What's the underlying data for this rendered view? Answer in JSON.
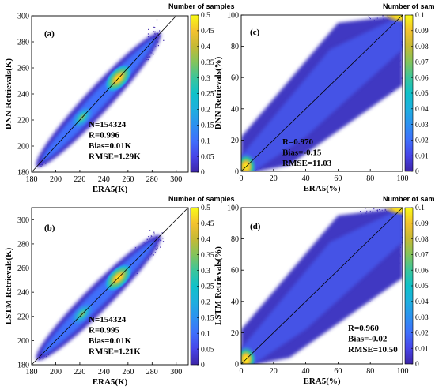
{
  "figure": {
    "panels": [
      {
        "label": "(a)",
        "ylabel": "DNN Retrievals(K)",
        "xlabel": "ERA5(K)",
        "xticks": [
          "180",
          "200",
          "220",
          "240",
          "260",
          "280",
          "300"
        ],
        "yticks": [
          "180",
          "200",
          "220",
          "240",
          "260",
          "280",
          "300"
        ],
        "colorbar_title": "Number of samples",
        "colorbar_ticks": [
          "0",
          "0.05",
          "0.1",
          "0.15",
          "0.2",
          "0.25",
          "0.3",
          "0.35",
          "0.4",
          "0.45",
          "0.5"
        ],
        "stats": [
          "N=154324",
          "R=0.996",
          "Bias=0.01K",
          "RMSE=1.29K"
        ]
      },
      {
        "label": "(c)",
        "ylabel": "DNN Retrievals(%)",
        "xlabel": "ERA5(%)",
        "xticks": [
          "0",
          "20",
          "40",
          "60",
          "80",
          "100"
        ],
        "yticks": [
          "0",
          "20",
          "40",
          "60",
          "80",
          "100"
        ],
        "colorbar_title": "Number of samples",
        "colorbar_ticks": [
          "0",
          "0.01",
          "0.02",
          "0.03",
          "0.04",
          "0.05",
          "0.06",
          "0.07",
          "0.08",
          "0.09",
          "0.1"
        ],
        "stats": [
          "R=0.970",
          "Bias=-0.15",
          "RMSE=11.03"
        ]
      },
      {
        "label": "(b)",
        "ylabel": "LSTM Retrievals(K)",
        "xlabel": "ERA5(K)",
        "xticks": [
          "180",
          "200",
          "220",
          "240",
          "260",
          "280",
          "300"
        ],
        "yticks": [
          "180",
          "200",
          "220",
          "240",
          "260",
          "280",
          "300"
        ],
        "colorbar_title": "Number of samples",
        "colorbar_ticks": [
          "0",
          "0.05",
          "0.1",
          "0.15",
          "0.2",
          "0.25",
          "0.3",
          "0.35",
          "0.4",
          "0.45",
          "0.5"
        ],
        "stats": [
          "N=154324",
          "R=0.995",
          "Bias=0.01K",
          "RMSE=1.21K"
        ]
      },
      {
        "label": "(d)",
        "ylabel": "LSTM Retrievals(%)",
        "xlabel": "ERA5(%)",
        "xticks": [
          "0",
          "20",
          "40",
          "60",
          "80",
          "100"
        ],
        "yticks": [
          "0",
          "20",
          "40",
          "60",
          "80",
          "100"
        ],
        "colorbar_title": "Number of samples",
        "colorbar_ticks": [
          "0",
          "0.01",
          "0.02",
          "0.03",
          "0.04",
          "0.05",
          "0.06",
          "0.07",
          "0.08",
          "0.09",
          "0.1"
        ],
        "stats": [
          "R=0.960",
          "Bias=-0.02",
          "RMSE=10.50"
        ]
      }
    ]
  },
  "chart_data": [
    {
      "type": "scatter",
      "subtype": "density scatter",
      "panel": "(a)",
      "xlabel": "ERA5(K)",
      "ylabel": "DNN Retrievals(K)",
      "xlim": [
        180,
        310
      ],
      "ylim": [
        180,
        300
      ],
      "one_to_one_line": true,
      "colormap": "parula",
      "colorbar_label": "Number of samples",
      "colorbar_range": [
        0,
        0.5
      ],
      "density_peaks": [
        {
          "x": 252,
          "y": 252,
          "value": 0.5
        },
        {
          "x": 222,
          "y": 222,
          "value": 0.35
        }
      ],
      "stats": {
        "N": 154324,
        "R": 0.996,
        "Bias": "0.01K",
        "RMSE": "1.29K"
      }
    },
    {
      "type": "scatter",
      "subtype": "density scatter",
      "panel": "(c)",
      "xlabel": "ERA5(%)",
      "ylabel": "DNN Retrievals(%)",
      "xlim": [
        0,
        100
      ],
      "ylim": [
        0,
        100
      ],
      "one_to_one_line": true,
      "colormap": "parula",
      "colorbar_label": "Number of samples",
      "colorbar_range": [
        0,
        0.1
      ],
      "density_peaks": [
        {
          "x": 3,
          "y": 3,
          "value": 0.1
        }
      ],
      "stats": {
        "R": 0.97,
        "Bias": -0.15,
        "RMSE": 11.03
      }
    },
    {
      "type": "scatter",
      "subtype": "density scatter",
      "panel": "(b)",
      "xlabel": "ERA5(K)",
      "ylabel": "LSTM Retrievals(K)",
      "xlim": [
        180,
        310
      ],
      "ylim": [
        180,
        310
      ],
      "one_to_one_line": true,
      "colormap": "parula",
      "colorbar_label": "Number of samples",
      "colorbar_range": [
        0,
        0.5
      ],
      "density_peaks": [
        {
          "x": 252,
          "y": 252,
          "value": 0.5
        },
        {
          "x": 222,
          "y": 222,
          "value": 0.35
        }
      ],
      "stats": {
        "N": 154324,
        "R": 0.995,
        "Bias": "0.01K",
        "RMSE": "1.21K"
      }
    },
    {
      "type": "scatter",
      "subtype": "density scatter",
      "panel": "(d)",
      "xlabel": "ERA5(%)",
      "ylabel": "LSTM Retrievals(%)",
      "xlim": [
        0,
        100
      ],
      "ylim": [
        0,
        100
      ],
      "one_to_one_line": true,
      "colormap": "parula",
      "colorbar_label": "Number of samples",
      "colorbar_range": [
        0,
        0.1
      ],
      "density_peaks": [
        {
          "x": 3,
          "y": 3,
          "value": 0.1
        }
      ],
      "stats": {
        "R": 0.96,
        "Bias": -0.02,
        "RMSE": 10.5
      }
    }
  ]
}
